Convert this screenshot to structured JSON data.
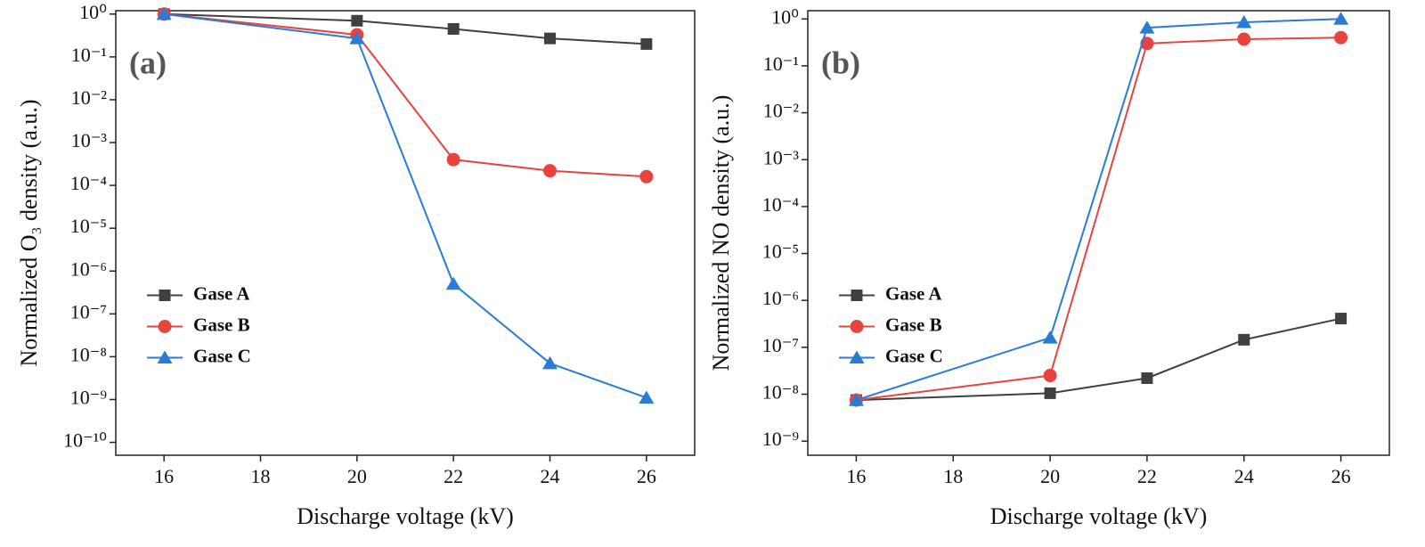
{
  "chart_data": [
    {
      "type": "line",
      "panel_label": "(a)",
      "x_label": "Discharge voltage (kV)",
      "y_label": "Normalized O₃ density (a.u.)",
      "log_y": true,
      "legend": "center left",
      "x": [
        16,
        20,
        22,
        24,
        26
      ],
      "xlim": [
        15,
        27
      ],
      "xticks": [
        16,
        18,
        20,
        22,
        24,
        26
      ],
      "ylim": [
        5e-11,
        1.2
      ],
      "yticks": [
        {
          "value": 1e-10,
          "label": "10⁻¹⁰"
        },
        {
          "value": 1e-09,
          "label": "10⁻⁹"
        },
        {
          "value": 1e-08,
          "label": "10⁻⁸"
        },
        {
          "value": 1e-07,
          "label": "10⁻⁷"
        },
        {
          "value": 1e-06,
          "label": "10⁻⁶"
        },
        {
          "value": 1e-05,
          "label": "10⁻⁵"
        },
        {
          "value": 0.0001,
          "label": "10⁻⁴"
        },
        {
          "value": 0.001,
          "label": "10⁻³"
        },
        {
          "value": 0.01,
          "label": "10⁻²"
        },
        {
          "value": 0.1,
          "label": "10⁻¹"
        },
        {
          "value": 1,
          "label": "10⁰"
        }
      ],
      "series": [
        {
          "name": "Gase A",
          "color": "#404040",
          "marker": "square",
          "values": [
            1,
            0.7,
            0.45,
            0.27,
            0.2
          ]
        },
        {
          "name": "Gase B",
          "color": "#e8433f",
          "marker": "circle",
          "values": [
            1,
            0.33,
            0.0004,
            0.00022,
            0.00016
          ]
        },
        {
          "name": "Gase C",
          "color": "#2a7bd4",
          "marker": "triangle",
          "values": [
            1,
            0.27,
            5e-07,
            7e-09,
            1.1e-09
          ]
        }
      ]
    },
    {
      "type": "line",
      "panel_label": "(b)",
      "x_label": "Discharge voltage (kV)",
      "y_label": "Normalized NO density (a.u.)",
      "log_y": true,
      "legend": "center left",
      "x": [
        16,
        20,
        22,
        24,
        26
      ],
      "xlim": [
        15,
        27
      ],
      "xticks": [
        16,
        18,
        20,
        22,
        24,
        26
      ],
      "ylim": [
        5e-10,
        1.5
      ],
      "yticks": [
        {
          "value": 1e-09,
          "label": "10⁻⁹"
        },
        {
          "value": 1e-08,
          "label": "10⁻⁸"
        },
        {
          "value": 1e-07,
          "label": "10⁻⁷"
        },
        {
          "value": 1e-06,
          "label": "10⁻⁶"
        },
        {
          "value": 1e-05,
          "label": "10⁻⁵"
        },
        {
          "value": 0.0001,
          "label": "10⁻⁴"
        },
        {
          "value": 0.001,
          "label": "10⁻³"
        },
        {
          "value": 0.01,
          "label": "10⁻²"
        },
        {
          "value": 0.1,
          "label": "10⁻¹"
        },
        {
          "value": 1,
          "label": "10⁰"
        }
      ],
      "series": [
        {
          "name": "Gase A",
          "color": "#404040",
          "marker": "square",
          "values": [
            7.5e-09,
            1.05e-08,
            2.2e-08,
            1.45e-07,
            4.1e-07
          ]
        },
        {
          "name": "Gase B",
          "color": "#e8433f",
          "marker": "circle",
          "values": [
            7.5e-09,
            2.5e-08,
            0.3,
            0.37,
            0.4
          ]
        },
        {
          "name": "Gase C",
          "color": "#2a7bd4",
          "marker": "triangle",
          "values": [
            7.5e-09,
            1.6e-07,
            0.65,
            0.85,
            1.0
          ]
        }
      ]
    }
  ]
}
